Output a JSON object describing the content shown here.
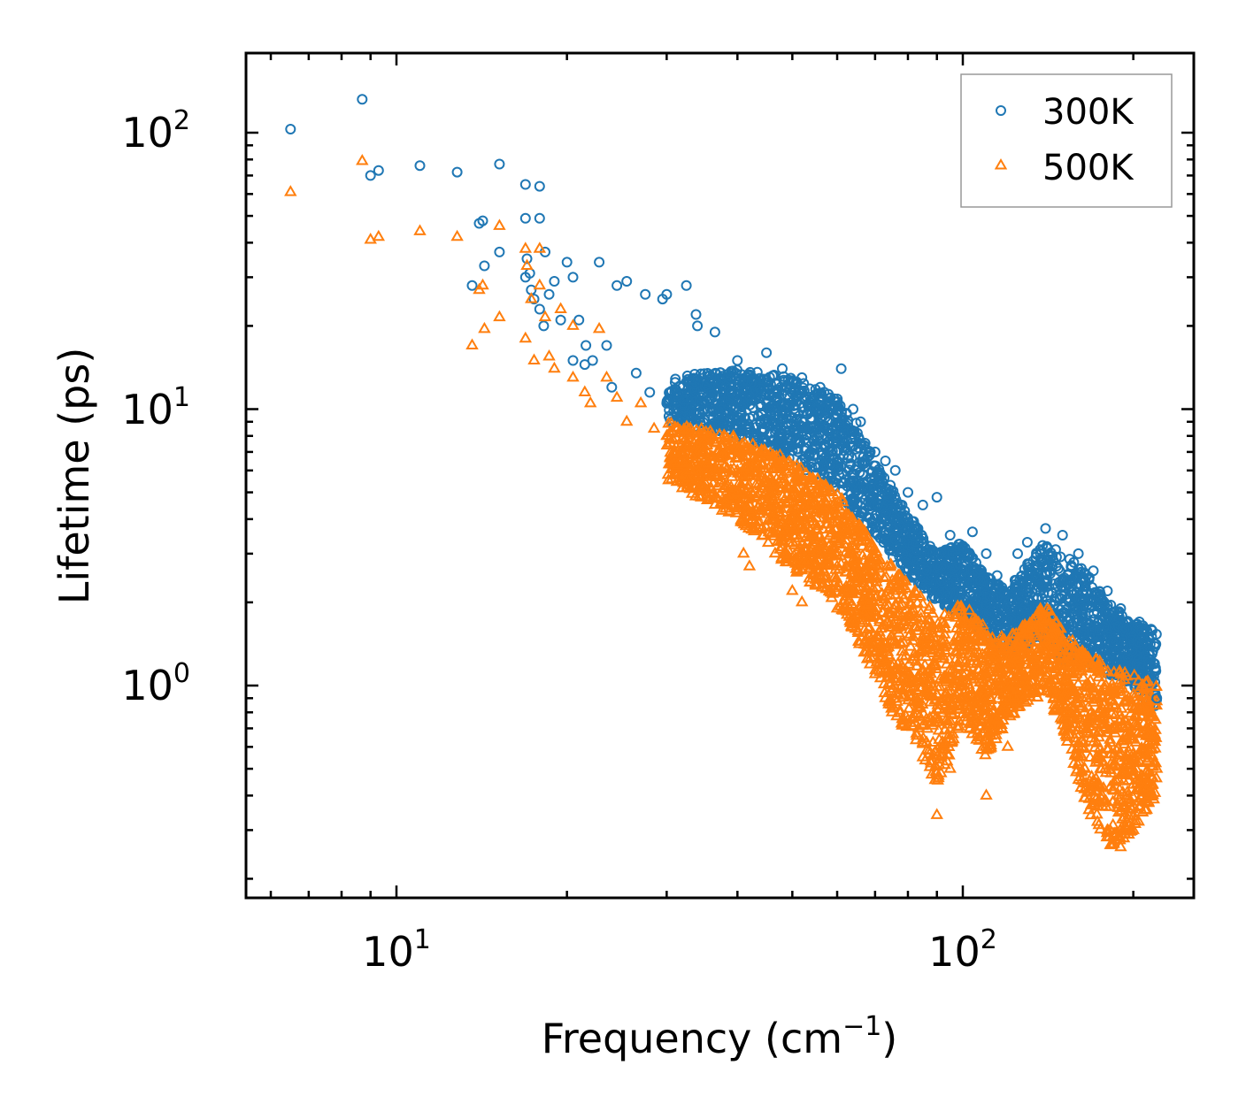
{
  "chart_data": {
    "type": "scatter",
    "title": "",
    "xlabel": "Frequency (cm",
    "xlabel_sup": "−1",
    "xlabel_close": ")",
    "ylabel": "Lifetime (ps)",
    "xscale": "log",
    "yscale": "log",
    "xlim": [
      5.8,
      250
    ],
    "ylim": [
      0.18,
      200
    ],
    "xticks": [
      {
        "base": "10",
        "exp": "1",
        "value": 10
      },
      {
        "base": "10",
        "exp": "2",
        "value": 100
      }
    ],
    "yticks": [
      {
        "base": "10",
        "exp": "0",
        "value": 1
      },
      {
        "base": "10",
        "exp": "1",
        "value": 10
      },
      {
        "base": "10",
        "exp": "2",
        "value": 100
      }
    ],
    "legend": {
      "position": "top-right",
      "entries": [
        "300K",
        "500K"
      ]
    },
    "series": [
      {
        "name": "300K",
        "marker": "circle-open",
        "color": "#1f77b4",
        "points": [
          [
            6.5,
            103
          ],
          [
            8.7,
            132
          ],
          [
            9.0,
            70
          ],
          [
            9.3,
            73
          ],
          [
            11.0,
            76
          ],
          [
            12.8,
            72
          ],
          [
            15.2,
            77
          ],
          [
            14.0,
            47
          ],
          [
            14.2,
            48
          ],
          [
            14.3,
            33
          ],
          [
            13.6,
            28
          ],
          [
            15.2,
            37
          ],
          [
            16.9,
            65
          ],
          [
            17.9,
            64
          ],
          [
            16.9,
            49
          ],
          [
            17.9,
            49
          ],
          [
            18.3,
            37
          ],
          [
            17.0,
            35
          ],
          [
            17.2,
            31
          ],
          [
            16.9,
            30
          ],
          [
            17.3,
            27
          ],
          [
            17.5,
            25
          ],
          [
            17.9,
            23
          ],
          [
            18.6,
            26
          ],
          [
            19.0,
            29
          ],
          [
            20.0,
            34
          ],
          [
            20.5,
            30
          ],
          [
            22.8,
            34
          ],
          [
            19.5,
            21
          ],
          [
            18.2,
            20
          ],
          [
            21.0,
            21
          ],
          [
            21.6,
            17
          ],
          [
            22.2,
            15
          ],
          [
            23.5,
            17
          ],
          [
            24.5,
            28
          ],
          [
            25.5,
            29
          ],
          [
            27.5,
            26
          ],
          [
            29.5,
            25
          ],
          [
            30.0,
            26
          ],
          [
            32.5,
            28
          ],
          [
            33.8,
            22
          ],
          [
            34.0,
            20
          ],
          [
            36.5,
            19
          ],
          [
            20.5,
            15
          ],
          [
            21.5,
            14.5
          ],
          [
            24.0,
            12
          ],
          [
            26.5,
            13.5
          ],
          [
            28.0,
            11.5
          ],
          [
            30.0,
            10.5
          ],
          [
            32.0,
            12
          ],
          [
            34.5,
            11
          ],
          [
            36.0,
            13
          ],
          [
            40.0,
            15
          ],
          [
            45.0,
            16
          ],
          [
            48.0,
            14
          ],
          [
            52.0,
            13
          ],
          [
            56.0,
            12
          ],
          [
            61.0,
            14
          ],
          [
            64.0,
            10
          ],
          [
            66.0,
            9
          ],
          [
            70.0,
            7
          ],
          [
            73.0,
            6.5
          ],
          [
            76.0,
            6
          ],
          [
            80.0,
            5
          ],
          [
            85.0,
            4.5
          ],
          [
            90.0,
            4.8
          ],
          [
            95.0,
            3.5
          ],
          [
            100.0,
            3.2
          ],
          [
            104.0,
            3.6
          ],
          [
            110.0,
            3.0
          ],
          [
            115.0,
            2.5
          ],
          [
            125.0,
            3.0
          ],
          [
            130.0,
            3.3
          ],
          [
            140.0,
            3.7
          ],
          [
            150.0,
            3.5
          ],
          [
            160.0,
            3.0
          ],
          [
            170.0,
            2.6
          ],
          [
            180.0,
            2.2
          ],
          [
            190.0,
            1.9
          ],
          [
            205.0,
            1.7
          ],
          [
            215.0,
            1.6
          ],
          [
            218.0,
            1.2
          ],
          [
            220.0,
            0.9
          ]
        ]
      },
      {
        "name": "500K",
        "marker": "triangle-open",
        "color": "#ff7f0e",
        "points": [
          [
            6.5,
            61
          ],
          [
            8.7,
            79
          ],
          [
            9.0,
            41
          ],
          [
            9.3,
            42
          ],
          [
            11.0,
            44
          ],
          [
            12.8,
            42
          ],
          [
            15.2,
            46
          ],
          [
            14.0,
            27
          ],
          [
            14.2,
            28
          ],
          [
            13.6,
            17
          ],
          [
            14.3,
            19.5
          ],
          [
            15.2,
            21.5
          ],
          [
            16.9,
            38
          ],
          [
            17.9,
            38
          ],
          [
            17.0,
            33
          ],
          [
            17.3,
            25
          ],
          [
            17.9,
            28
          ],
          [
            18.3,
            21.5
          ],
          [
            19.5,
            23
          ],
          [
            20.5,
            20
          ],
          [
            22.8,
            19.5
          ],
          [
            16.9,
            18
          ],
          [
            17.5,
            15
          ],
          [
            18.6,
            15.5
          ],
          [
            19.0,
            14
          ],
          [
            20.5,
            13
          ],
          [
            21.5,
            11.5
          ],
          [
            22.0,
            10.5
          ],
          [
            23.5,
            13
          ],
          [
            24.5,
            11
          ],
          [
            25.5,
            9
          ],
          [
            27.0,
            10.5
          ],
          [
            28.5,
            8.5
          ],
          [
            30.0,
            8
          ],
          [
            31.0,
            7
          ],
          [
            33.0,
            6
          ],
          [
            35.0,
            6.5
          ],
          [
            40.0,
            5
          ],
          [
            38.0,
            4.5
          ],
          [
            41.0,
            3
          ],
          [
            42.0,
            2.7
          ],
          [
            46.0,
            4
          ],
          [
            50.0,
            2.2
          ],
          [
            52.0,
            2.0
          ],
          [
            56.0,
            2.5
          ],
          [
            60.0,
            1.9
          ],
          [
            64.0,
            1.7
          ],
          [
            68.0,
            1.4
          ],
          [
            70.0,
            1.1
          ],
          [
            73.0,
            0.9
          ],
          [
            75.0,
            0.8
          ],
          [
            80.0,
            0.75
          ],
          [
            85.0,
            0.55
          ],
          [
            90.0,
            0.34
          ],
          [
            95.0,
            0.5
          ],
          [
            100.0,
            0.9
          ],
          [
            110.0,
            0.4
          ],
          [
            115.0,
            0.75
          ],
          [
            120.0,
            0.6
          ],
          [
            130.0,
            1.0
          ],
          [
            140.0,
            1.3
          ],
          [
            150.0,
            0.9
          ],
          [
            160.0,
            0.6
          ],
          [
            170.0,
            0.45
          ],
          [
            180.0,
            0.3
          ],
          [
            190.0,
            0.26
          ],
          [
            200.0,
            0.3
          ],
          [
            215.0,
            0.4
          ],
          [
            220.0,
            0.5
          ]
        ]
      }
    ]
  }
}
